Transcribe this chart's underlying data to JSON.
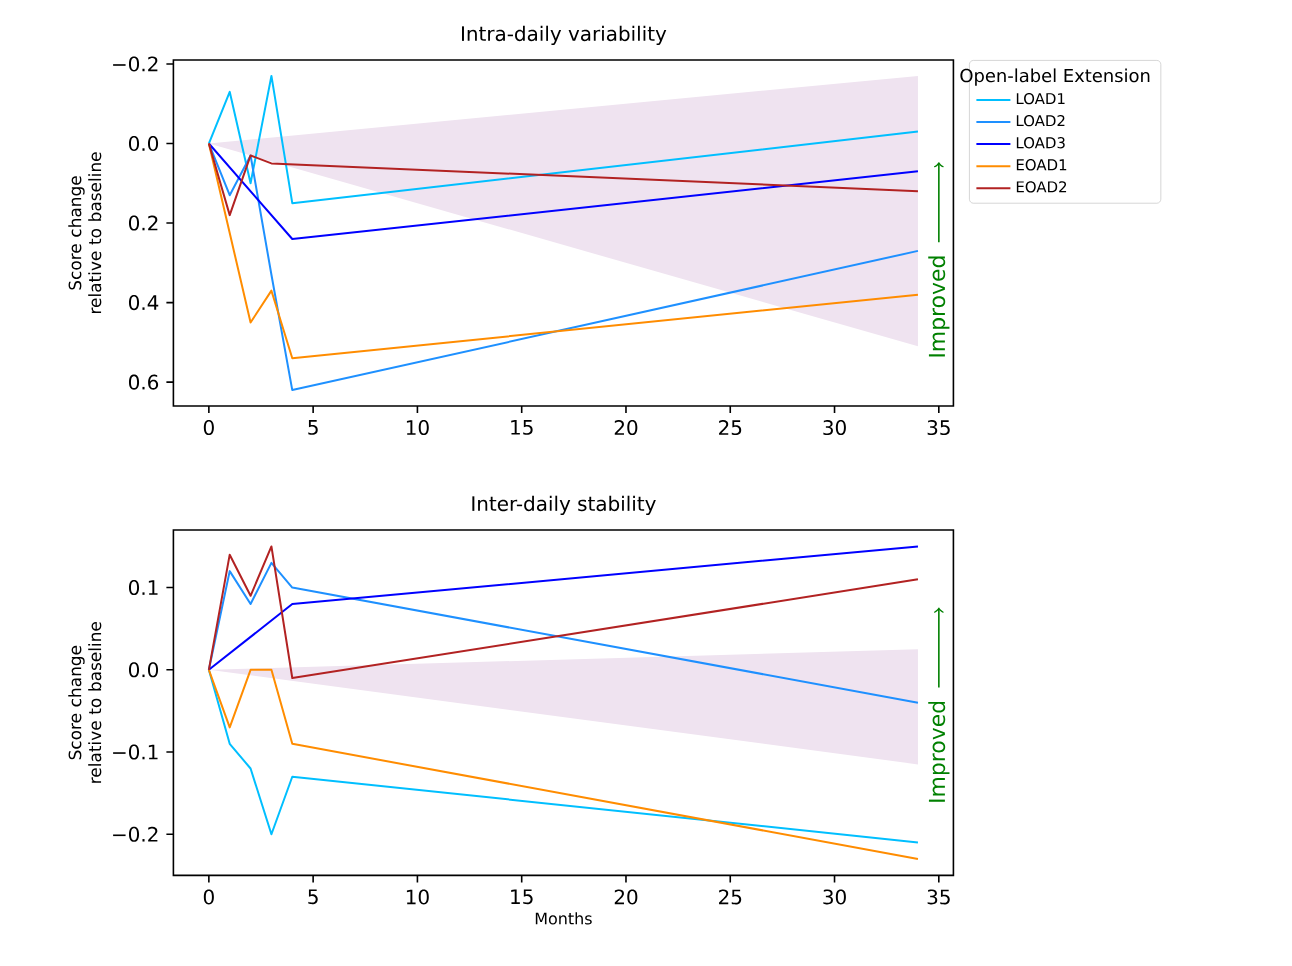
{
  "chart_data": [
    {
      "type": "line",
      "title": "Intra-daily variability",
      "ylabel": "Score change relative to baseline",
      "legend_title": "Open-label Extension",
      "legend": "right",
      "xlim": [
        -1.7,
        35.7
      ],
      "xticks": [
        0,
        5,
        10,
        15,
        20,
        25,
        30,
        35
      ],
      "ylim": [
        0.66,
        -0.21
      ],
      "yticks": [
        {
          "value": -0.2,
          "label": "−0.2"
        },
        {
          "value": 0,
          "label": "0.0"
        },
        {
          "value": 0.2,
          "label": "0.2"
        },
        {
          "value": 0.4,
          "label": "0.4"
        },
        {
          "value": 0.6,
          "label": "0.6"
        }
      ],
      "annotations": [
        "Improved"
      ],
      "series": [
        {
          "type": "area",
          "color": "#efe3f0",
          "x": [
            0,
            34,
            34
          ],
          "values": [
            0,
            -0.17,
            0.51
          ]
        },
        {
          "name": "LOAD1",
          "color": "#00bfff",
          "x": [
            0,
            1,
            2,
            3,
            4,
            34
          ],
          "values": [
            0,
            -0.13,
            0.1,
            -0.17,
            0.15,
            -0.03
          ]
        },
        {
          "name": "LOAD2",
          "color": "#1e90ff",
          "x": [
            0,
            1,
            2,
            3,
            4,
            34
          ],
          "values": [
            0,
            0.13,
            0.03,
            0.33,
            0.62,
            0.27
          ]
        },
        {
          "name": "LOAD3",
          "color": "#0000ff",
          "x": [
            0,
            4,
            34
          ],
          "values": [
            0,
            0.24,
            0.07
          ]
        },
        {
          "name": "EOAD1",
          "color": "#ff8c00",
          "x": [
            0,
            2,
            3,
            4,
            34
          ],
          "values": [
            0,
            0.45,
            0.37,
            0.54,
            0.38
          ]
        },
        {
          "name": "EOAD2",
          "color": "#b22222",
          "x": [
            0,
            1,
            2,
            3,
            34
          ],
          "values": [
            0,
            0.18,
            0.03,
            0.05,
            0.12
          ]
        }
      ]
    },
    {
      "type": "line",
      "title": "Inter-daily stability",
      "xlabel": "Months",
      "ylabel": "Score change relative to baseline",
      "xlim": [
        -1.7,
        35.7
      ],
      "xticks": [
        0,
        5,
        10,
        15,
        20,
        25,
        30,
        35
      ],
      "ylim": [
        -0.25,
        0.17
      ],
      "yticks": [
        {
          "value": -0.2,
          "label": "−0.2"
        },
        {
          "value": -0.1,
          "label": "−0.1"
        },
        {
          "value": 0,
          "label": "0.0"
        },
        {
          "value": 0.1,
          "label": "0.1"
        }
      ],
      "annotations": [
        "Improved"
      ],
      "series": [
        {
          "type": "area",
          "color": "#efe3f0",
          "x": [
            0,
            34,
            34
          ],
          "values": [
            0,
            0.025,
            -0.115
          ]
        },
        {
          "color": "#00bfff",
          "x": [
            0,
            1,
            2,
            3,
            4,
            34
          ],
          "values": [
            0,
            -0.09,
            -0.12,
            -0.2,
            -0.13,
            -0.21
          ]
        },
        {
          "color": "#1e90ff",
          "x": [
            0,
            1,
            2,
            3,
            4,
            34
          ],
          "values": [
            0,
            0.12,
            0.08,
            0.13,
            0.1,
            -0.04
          ]
        },
        {
          "color": "#0000ff",
          "x": [
            0,
            4,
            34
          ],
          "values": [
            0,
            0.08,
            0.15
          ]
        },
        {
          "color": "#ff8c00",
          "x": [
            0,
            1,
            2,
            3,
            4,
            34
          ],
          "values": [
            0,
            -0.07,
            0,
            0,
            -0.09,
            -0.23
          ]
        },
        {
          "color": "#b22222",
          "x": [
            0,
            1,
            2,
            3,
            4,
            34
          ],
          "values": [
            0,
            0.14,
            0.09,
            0.15,
            -0.01,
            0.11
          ]
        }
      ]
    }
  ]
}
